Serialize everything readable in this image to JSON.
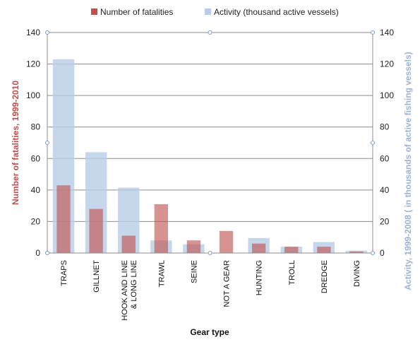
{
  "chart_data": {
    "type": "bar",
    "categories": [
      "TRAPS",
      "GILLNET",
      "HOOK AND LINE & LONG LINE",
      "TRAWL",
      "SEINE",
      "NOT A GEAR",
      "HUNTING",
      "TROLL",
      "DREDGE",
      "DIVING"
    ],
    "category_lines": [
      [
        "TRAPS"
      ],
      [
        "GILLNET"
      ],
      [
        "HOOK AND LINE",
        "& LONG LINE"
      ],
      [
        "TRAWL"
      ],
      [
        "SEINE"
      ],
      [
        "NOT A GEAR"
      ],
      [
        "HUNTING"
      ],
      [
        "TROLL"
      ],
      [
        "DREDGE"
      ],
      [
        "DIVING"
      ]
    ],
    "series": [
      {
        "name": "Number of fatalities",
        "axis": "left",
        "color": "#c0504d",
        "values": [
          43,
          28,
          11,
          31,
          8,
          14,
          6,
          4,
          4,
          1
        ]
      },
      {
        "name": "Activity (thousand active vessels)",
        "axis": "right",
        "color": "#b9cde6",
        "values": [
          123,
          64,
          41.5,
          8,
          5.5,
          0,
          9.5,
          4,
          7,
          1.5
        ]
      }
    ],
    "xlabel": "Gear type",
    "ylabel": "Number of fatalities, 1999-2010",
    "y2label": "Activity, 1999-2008 ( in thousands of active fishing vessels)",
    "ylim": [
      0,
      140
    ],
    "y2lim": [
      0,
      140
    ],
    "yticks": [
      0,
      20,
      40,
      60,
      80,
      100,
      120,
      140
    ],
    "grid": true,
    "legend_position": "top"
  }
}
